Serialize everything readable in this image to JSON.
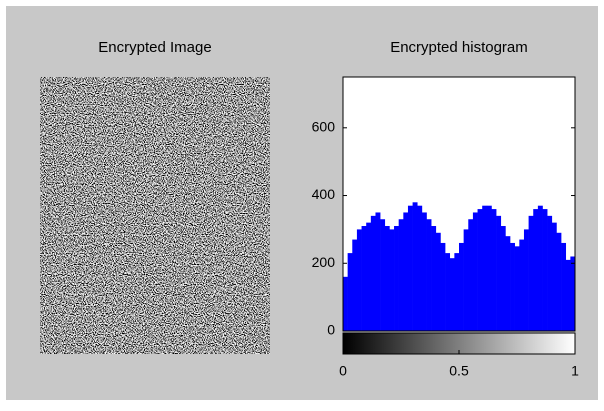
{
  "chart_data": [
    {
      "type": "image",
      "title": "Encrypted Image"
    },
    {
      "type": "histogram",
      "title": "Encrypted histogram",
      "bins": [
        0,
        0.02,
        0.04,
        0.06,
        0.08,
        0.1,
        0.12,
        0.14,
        0.16,
        0.18,
        0.2,
        0.22,
        0.24,
        0.26,
        0.28,
        0.3,
        0.32,
        0.34,
        0.36,
        0.38,
        0.4,
        0.42,
        0.44,
        0.46,
        0.48,
        0.5,
        0.52,
        0.54,
        0.56,
        0.58,
        0.6,
        0.62,
        0.64,
        0.66,
        0.68,
        0.7,
        0.72,
        0.74,
        0.76,
        0.78,
        0.8,
        0.82,
        0.84,
        0.86,
        0.88,
        0.9,
        0.92,
        0.94,
        0.96,
        0.98,
        1
      ],
      "values": [
        160,
        230,
        270,
        300,
        310,
        320,
        340,
        350,
        330,
        310,
        300,
        310,
        330,
        350,
        370,
        380,
        370,
        350,
        330,
        310,
        290,
        260,
        230,
        215,
        230,
        260,
        300,
        330,
        350,
        360,
        370,
        370,
        360,
        340,
        310,
        280,
        260,
        250,
        270,
        300,
        340,
        360,
        370,
        360,
        340,
        320,
        290,
        260,
        210,
        220
      ],
      "color": "#0000ff",
      "xlim": [
        0,
        1
      ],
      "ylim": [
        0,
        750
      ],
      "xticks": [
        0,
        0.5,
        1
      ],
      "yticks": [
        0,
        200,
        400,
        600
      ]
    }
  ]
}
